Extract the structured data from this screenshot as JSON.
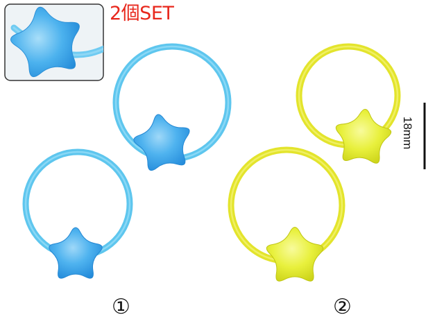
{
  "set_label": "2個SET",
  "variant_labels": [
    "①",
    "②"
  ],
  "scale_bar": {
    "label": "18mm"
  },
  "colors": {
    "blue_band": "#5ec6ee",
    "blue_star": "#3aa6ec",
    "yellow_band": "#e3e42c",
    "yellow_star": "#e5ef3a",
    "label_red": "#e8271c"
  },
  "product": {
    "type": "star hair tie",
    "variants": [
      {
        "color_name": "blue",
        "count": 2
      },
      {
        "color_name": "yellow",
        "count": 2
      }
    ]
  }
}
